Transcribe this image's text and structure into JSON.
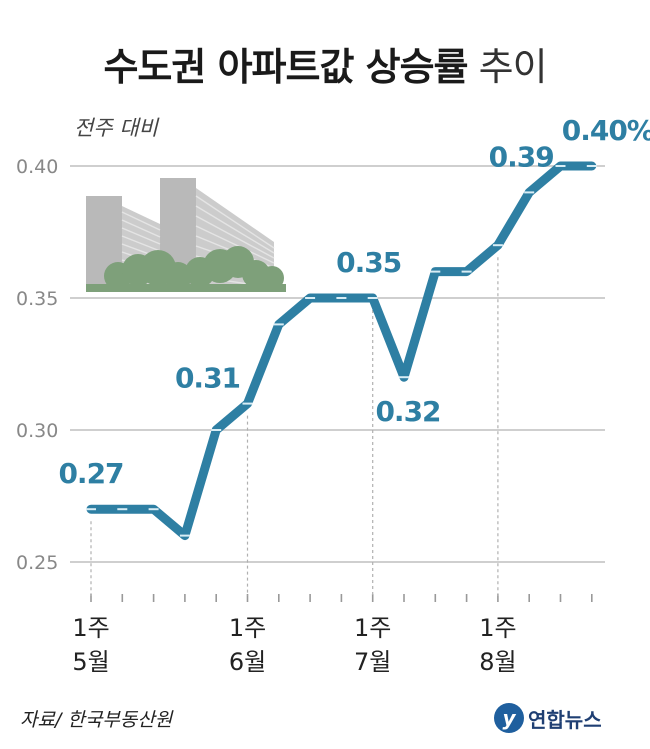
{
  "title": {
    "main": "수도권 아파트값 상승률",
    "suffix": "추이"
  },
  "subtitle": "전주 대비",
  "source": "자료/ 한국부동산원",
  "logo": {
    "mark": "y",
    "text": "연합뉴스"
  },
  "colors": {
    "line": "#2e7fa3",
    "label": "#2e7fa3",
    "grid": "#cfcfcf",
    "axis": "#999999",
    "building": "#b9b9b9",
    "trees": "#7ea07a"
  },
  "chart_data": {
    "type": "line",
    "ylim": [
      0.25,
      0.4
    ],
    "yticks": [
      "0.40",
      "0.35",
      "0.30",
      "0.25"
    ],
    "grid": true,
    "series": [
      {
        "values": [
          0.27,
          0.27,
          0.27,
          0.26,
          0.3,
          0.31,
          0.34,
          0.35,
          0.35,
          0.35,
          0.32,
          0.36,
          0.36,
          0.37,
          0.39,
          0.4,
          0.4
        ]
      }
    ],
    "x_tick_labels": [
      {
        "index": 0,
        "line1": "1주",
        "line2": "5월"
      },
      {
        "index": 5,
        "line1": "1주",
        "line2": "6월"
      },
      {
        "index": 9,
        "line1": "1주",
        "line2": "7월"
      },
      {
        "index": 13,
        "line1": "1주",
        "line2": "8월"
      }
    ],
    "data_labels": [
      {
        "index": 0,
        "text": "0.27"
      },
      {
        "index": 5,
        "text": "0.31"
      },
      {
        "index": 9,
        "text": "0.35"
      },
      {
        "index": 10,
        "text": "0.32"
      },
      {
        "index": 14,
        "text": "0.39"
      },
      {
        "index": 16,
        "text": "0.40%"
      }
    ]
  }
}
